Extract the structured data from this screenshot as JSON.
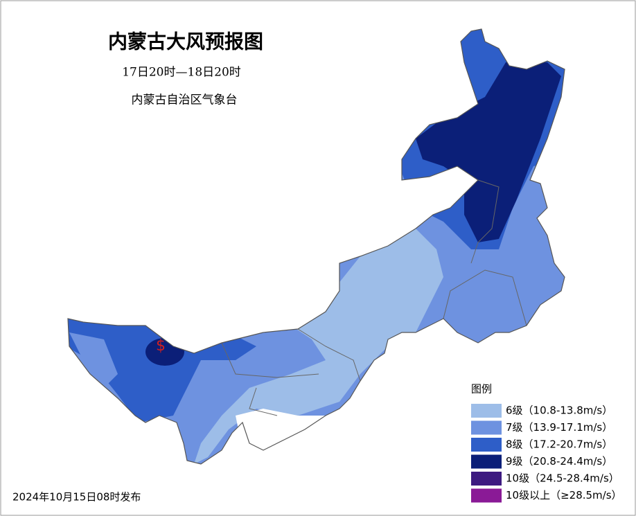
{
  "header": {
    "title": "内蒙古大风预报图",
    "period": "17日20时—18日20时",
    "issuer": "内蒙古自治区气象台"
  },
  "legend": {
    "title": "图例",
    "items": [
      {
        "label": "6级（10.8-13.8m/s）",
        "color": "#9dbde8"
      },
      {
        "label": "7级（13.9-17.1m/s）",
        "color": "#6e92e0"
      },
      {
        "label": "8级（17.2-20.7m/s）",
        "color": "#2e5ec8"
      },
      {
        "label": "9级（20.8-24.4m/s）",
        "color": "#0b1f78"
      },
      {
        "label": "10级（24.5-28.4m/s）",
        "color": "#3d1a80"
      },
      {
        "label": "10级以上（≥28.5m/s）",
        "color": "#8a1a96"
      }
    ]
  },
  "footer": {
    "issued": "2024年10月15日08时发布"
  }
}
